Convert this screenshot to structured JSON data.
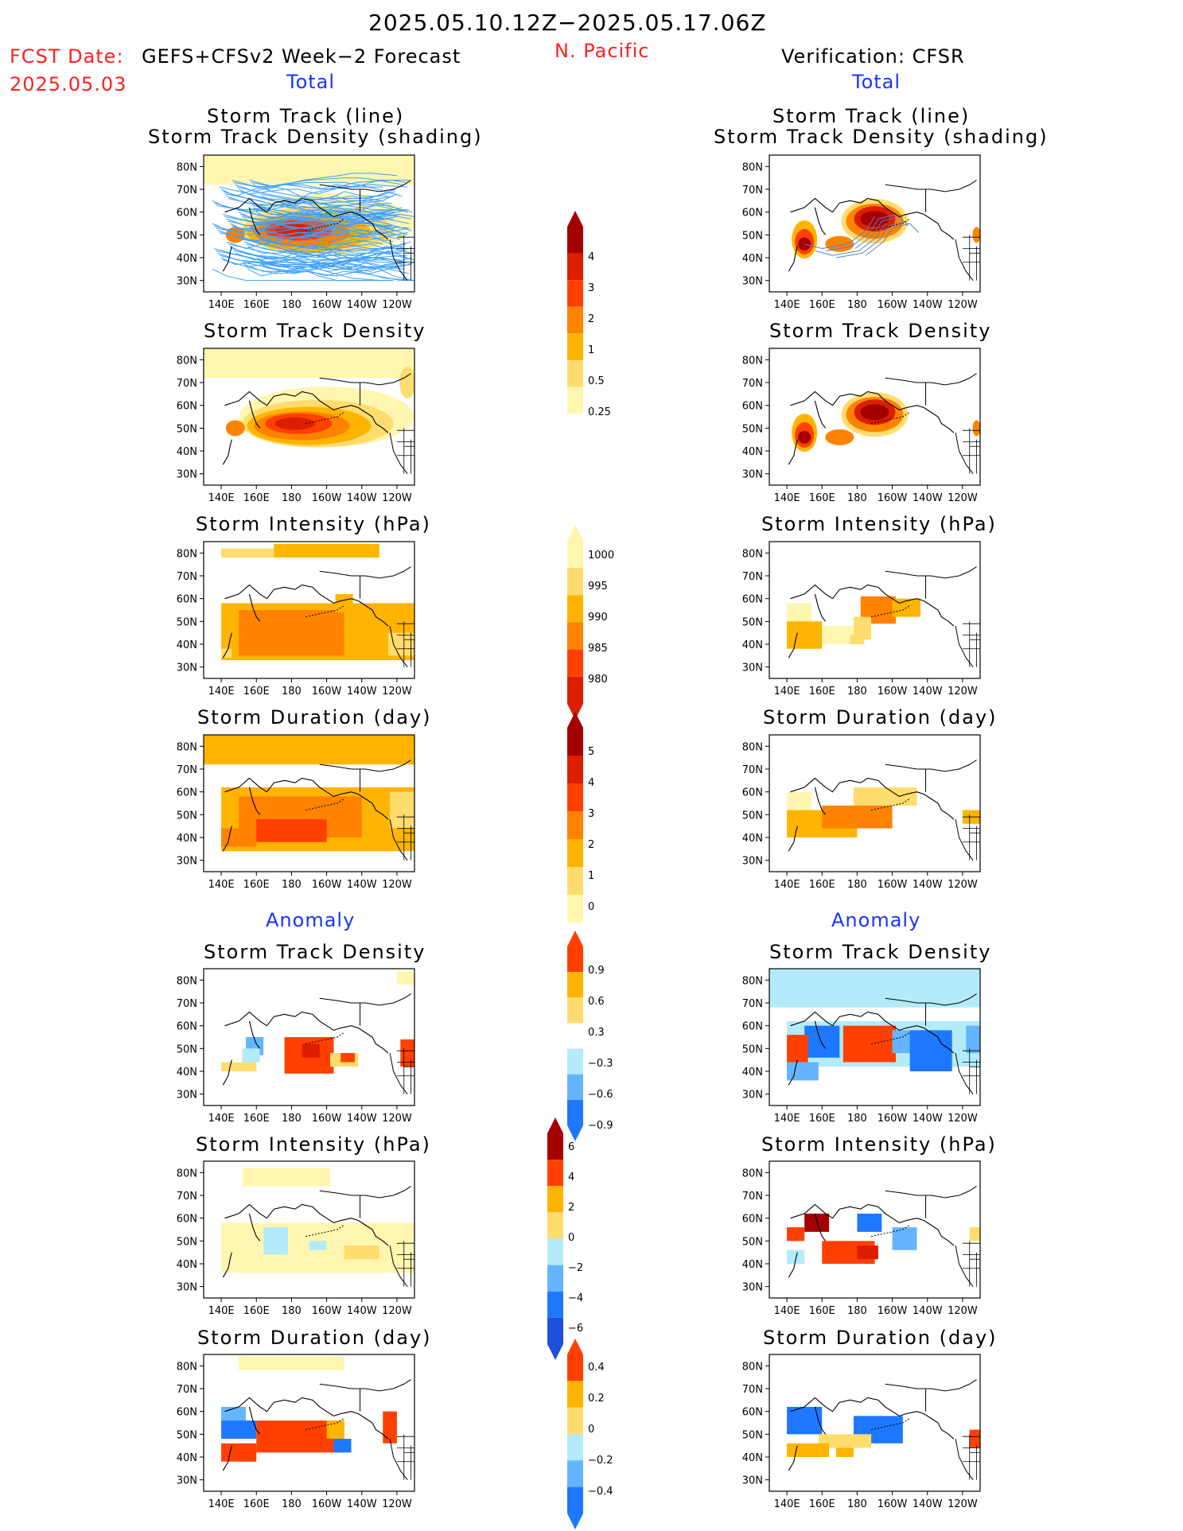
{
  "header": {
    "period": "2025.05.10.12Z−2025.05.17.06Z",
    "fcst_label": "FCST Date:",
    "fcst_model": "GEFS+CFSv2 Week−2 Forecast",
    "fcst_date": "2025.05.03",
    "region": "N. Pacific",
    "verification": "Verification: CFSR"
  },
  "sections": {
    "total_left": "Total",
    "total_right": "Total",
    "anomaly_left": "Anomaly",
    "anomaly_right": "Anomaly"
  },
  "panel_titles": {
    "track_line": "Storm Track (line)",
    "track_shading": "Storm Track Density (shading)",
    "density": "Storm Track Density",
    "intensity": "Storm Intensity (hPa)",
    "duration": "Storm Duration (day)"
  },
  "axes": {
    "lat_ticks": [
      "80N",
      "70N",
      "60N",
      "50N",
      "40N",
      "30N"
    ],
    "lon_ticks": [
      "140E",
      "160E",
      "180",
      "160W",
      "140W",
      "120W"
    ]
  },
  "colorbars": {
    "density_total": [
      "4",
      "3",
      "2",
      "1",
      "0.5",
      "0.25"
    ],
    "intensity_total": [
      "1000",
      "995",
      "990",
      "985",
      "980"
    ],
    "duration_total": [
      "5",
      "4",
      "3",
      "2",
      "1",
      "0"
    ],
    "density_anom": [
      "0.9",
      "0.6",
      "0.3",
      "−0.3",
      "−0.6",
      "−0.9"
    ],
    "intensity_anom": [
      "6",
      "4",
      "2",
      "0",
      "−2",
      "−4",
      "−6"
    ],
    "duration_anom": [
      "0.4",
      "0.2",
      "0",
      "−0.2",
      "−0.4"
    ]
  },
  "colors": {
    "warm": [
      "#fff6b0",
      "#ffdc6e",
      "#ffb400",
      "#ff8200",
      "#ff4000",
      "#dc1e00",
      "#a50000"
    ],
    "cool": [
      "#ffffff",
      "#b4ebfa",
      "#64b4ff",
      "#1e78ff",
      "#1e50dc"
    ],
    "track_line": "#3ca0ff",
    "track_line_obs": "#5a82c8"
  }
}
